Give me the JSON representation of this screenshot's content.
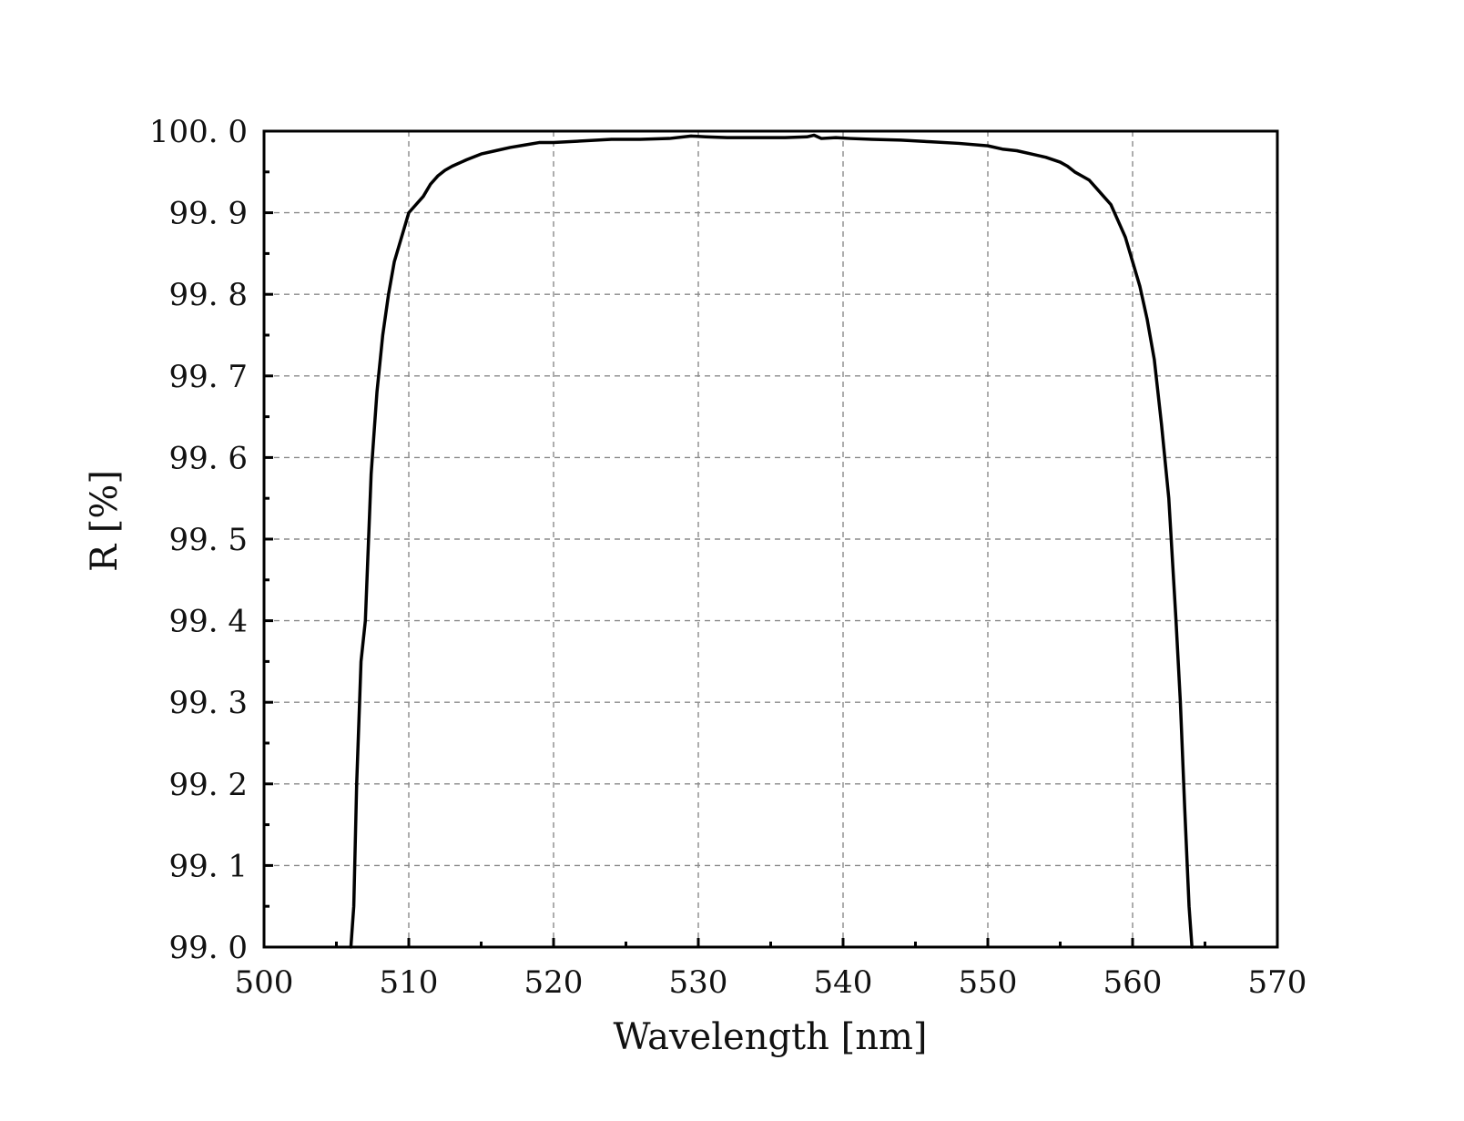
{
  "chart_data": {
    "type": "line",
    "xlabel": "Wavelength [nm]",
    "ylabel": "R [%]",
    "xlim": [
      500,
      570
    ],
    "ylim": [
      99.0,
      100.0
    ],
    "xticks": [
      500,
      510,
      520,
      530,
      540,
      550,
      560,
      570
    ],
    "xtick_labels": [
      "500",
      "510",
      "520",
      "530",
      "540",
      "550",
      "560",
      "570"
    ],
    "yticks": [
      99.0,
      99.1,
      99.2,
      99.3,
      99.4,
      99.5,
      99.6,
      99.7,
      99.8,
      99.9,
      100.0
    ],
    "ytick_labels": [
      "99. 0",
      "99. 1",
      "99. 2",
      "99. 3",
      "99. 4",
      "99. 5",
      "99. 6",
      "99. 7",
      "99. 8",
      "99. 9",
      "100. 0"
    ],
    "grid": true,
    "line_color": "#000000",
    "series": [
      {
        "x": [
          506.0,
          506.2,
          506.4,
          506.7,
          507.0,
          507.4,
          507.8,
          508.2,
          508.6,
          509.0,
          509.5,
          510.0,
          510.5,
          511.0,
          511.5,
          512.0,
          512.5,
          513.0,
          514.0,
          515.0,
          516.0,
          517.0,
          518.0,
          519.0,
          520.0,
          522.0,
          524.0,
          526.0,
          528.0,
          529.5,
          530.5,
          532.0,
          534.0,
          536.0,
          537.5,
          538.0,
          538.5,
          539.5,
          540.5,
          542.0,
          544.0,
          546.0,
          548.0,
          550.0,
          551.0,
          552.0,
          553.0,
          554.0,
          555.0,
          555.5,
          556.0,
          556.5,
          557.0,
          557.5,
          558.0,
          558.5,
          559.0,
          559.5,
          560.0,
          560.5,
          561.0,
          561.5,
          562.0,
          562.5,
          563.0,
          563.3,
          563.6,
          563.9,
          564.1
        ],
        "y": [
          99.0,
          99.05,
          99.2,
          99.35,
          99.4,
          99.58,
          99.68,
          99.75,
          99.8,
          99.84,
          99.87,
          99.9,
          99.91,
          99.92,
          99.935,
          99.945,
          99.952,
          99.957,
          99.965,
          99.972,
          99.976,
          99.98,
          99.983,
          99.986,
          99.986,
          99.988,
          99.99,
          99.99,
          99.991,
          99.994,
          99.993,
          99.992,
          99.992,
          99.992,
          99.993,
          99.995,
          99.991,
          99.992,
          99.991,
          99.99,
          99.989,
          99.987,
          99.985,
          99.982,
          99.978,
          99.976,
          99.972,
          99.968,
          99.962,
          99.957,
          99.95,
          99.945,
          99.94,
          99.93,
          99.92,
          99.91,
          99.89,
          99.87,
          99.84,
          99.81,
          99.77,
          99.72,
          99.64,
          99.55,
          99.4,
          99.3,
          99.17,
          99.05,
          99.0
        ]
      }
    ]
  }
}
